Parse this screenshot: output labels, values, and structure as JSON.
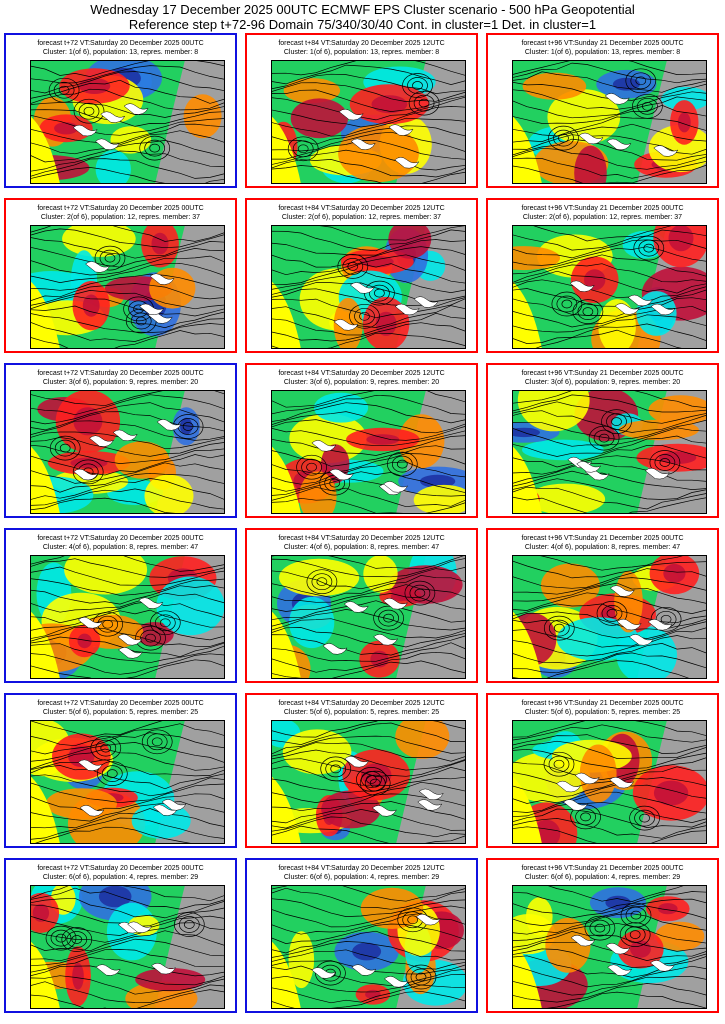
{
  "header": {
    "line1": "Wednesday 17 December 2025 00UTC ECMWF EPS Cluster scenario - 500 hPa Geopotential",
    "line2": "Reference step t+72-96 Domain 75/340/30/40 Cont. in cluster=1 Det. in cluster=1"
  },
  "colors": {
    "border_blue": "#1010e0",
    "border_red": "#ff0000",
    "warm_dark": "#c0103a",
    "warm": "#ff2020",
    "orange": "#ff8c00",
    "yellow": "#ffff00",
    "green": "#22d060",
    "cyan": "#00e8e8",
    "blue": "#3070e0",
    "grey": "#a0a0a0"
  },
  "chart_data": {
    "type": "heatmap",
    "layout": "6 clusters x 3 forecast steps",
    "columns": [
      "t+72",
      "t+84",
      "t+96"
    ],
    "panels": [
      {
        "line1": "forecast t+72 VT:Saturday 20 December 2025 00UTC",
        "line2": "Cluster: 1(of 6), population: 13, repres. member: 8",
        "border": "blue",
        "cluster": 1,
        "step": 72,
        "population": 13,
        "member": 8
      },
      {
        "line1": "forecast t+84 VT:Saturday 20 December 2025 12UTC",
        "line2": "Cluster: 1(of 6), population: 13, repres. member: 8",
        "border": "red",
        "cluster": 1,
        "step": 84,
        "population": 13,
        "member": 8
      },
      {
        "line1": "forecast t+96 VT:Sunday 21 December 2025 00UTC",
        "line2": "Cluster: 1(of 6), population: 13, repres. member: 8",
        "border": "red",
        "cluster": 1,
        "step": 96,
        "population": 13,
        "member": 8
      },
      {
        "line1": "forecast t+72 VT:Saturday 20 December 2025 00UTC",
        "line2": "Cluster: 2(of 6), population: 12, repres. member: 37",
        "border": "red",
        "cluster": 2,
        "step": 72,
        "population": 12,
        "member": 37
      },
      {
        "line1": "forecast t+84 VT:Saturday 20 December 2025 12UTC",
        "line2": "Cluster: 2(of 6), population: 12, repres. member: 37",
        "border": "red",
        "cluster": 2,
        "step": 84,
        "population": 12,
        "member": 37
      },
      {
        "line1": "forecast t+96 VT:Sunday 21 December 2025 00UTC",
        "line2": "Cluster: 2(of 6), population: 12, repres. member: 37",
        "border": "red",
        "cluster": 2,
        "step": 96,
        "population": 12,
        "member": 37
      },
      {
        "line1": "forecast t+72 VT:Saturday 20 December 2025 00UTC",
        "line2": "Cluster: 3(of 6), population: 9, repres. member: 20",
        "border": "blue",
        "cluster": 3,
        "step": 72,
        "population": 9,
        "member": 20
      },
      {
        "line1": "forecast t+84 VT:Saturday 20 December 2025 12UTC",
        "line2": "Cluster: 3(of 6), population: 9, repres. member: 20",
        "border": "red",
        "cluster": 3,
        "step": 84,
        "population": 9,
        "member": 20
      },
      {
        "line1": "forecast t+96 VT:Sunday 21 December 2025 00UTC",
        "line2": "Cluster: 3(of 6), population: 9, repres. member: 20",
        "border": "red",
        "cluster": 3,
        "step": 96,
        "population": 9,
        "member": 20
      },
      {
        "line1": "forecast t+72 VT:Saturday 20 December 2025 00UTC",
        "line2": "Cluster: 4(of 6), population: 8, repres. member: 47",
        "border": "blue",
        "cluster": 4,
        "step": 72,
        "population": 8,
        "member": 47
      },
      {
        "line1": "forecast t+84 VT:Saturday 20 December 2025 12UTC",
        "line2": "Cluster: 4(of 6), population: 8, repres. member: 47",
        "border": "red",
        "cluster": 4,
        "step": 84,
        "population": 8,
        "member": 47
      },
      {
        "line1": "forecast t+96 VT:Sunday 21 December 2025 00UTC",
        "line2": "Cluster: 4(of 6), population: 8, repres. member: 47",
        "border": "red",
        "cluster": 4,
        "step": 96,
        "population": 8,
        "member": 47
      },
      {
        "line1": "forecast t+72 VT:Saturday 20 December 2025 00UTC",
        "line2": "Cluster: 5(of 6), population: 5, repres. member: 25",
        "border": "blue",
        "cluster": 5,
        "step": 72,
        "population": 5,
        "member": 25
      },
      {
        "line1": "forecast t+84 VT:Saturday 20 December 2025 12UTC",
        "line2": "Cluster: 5(of 6), population: 5, repres. member: 25",
        "border": "red",
        "cluster": 5,
        "step": 84,
        "population": 5,
        "member": 25
      },
      {
        "line1": "forecast t+96 VT:Sunday 21 December 2025 00UTC",
        "line2": "Cluster: 5(of 6), population: 5, repres. member: 25",
        "border": "red",
        "cluster": 5,
        "step": 96,
        "population": 5,
        "member": 25
      },
      {
        "line1": "forecast t+72 VT:Saturday 20 December 2025 00UTC",
        "line2": "Cluster: 6(of 6), population: 4, repres. member: 29",
        "border": "blue",
        "cluster": 6,
        "step": 72,
        "population": 4,
        "member": 29
      },
      {
        "line1": "forecast t+84 VT:Saturday 20 December 2025 12UTC",
        "line2": "Cluster: 6(of 6), population: 4, repres. member: 29",
        "border": "blue",
        "cluster": 6,
        "step": 84,
        "population": 4,
        "member": 29
      },
      {
        "line1": "forecast t+96 VT:Sunday 21 December 2025 00UTC",
        "line2": "Cluster: 6(of 6), population: 4, repres. member: 29",
        "border": "red",
        "cluster": 6,
        "step": 96,
        "population": 4,
        "member": 29
      }
    ]
  }
}
